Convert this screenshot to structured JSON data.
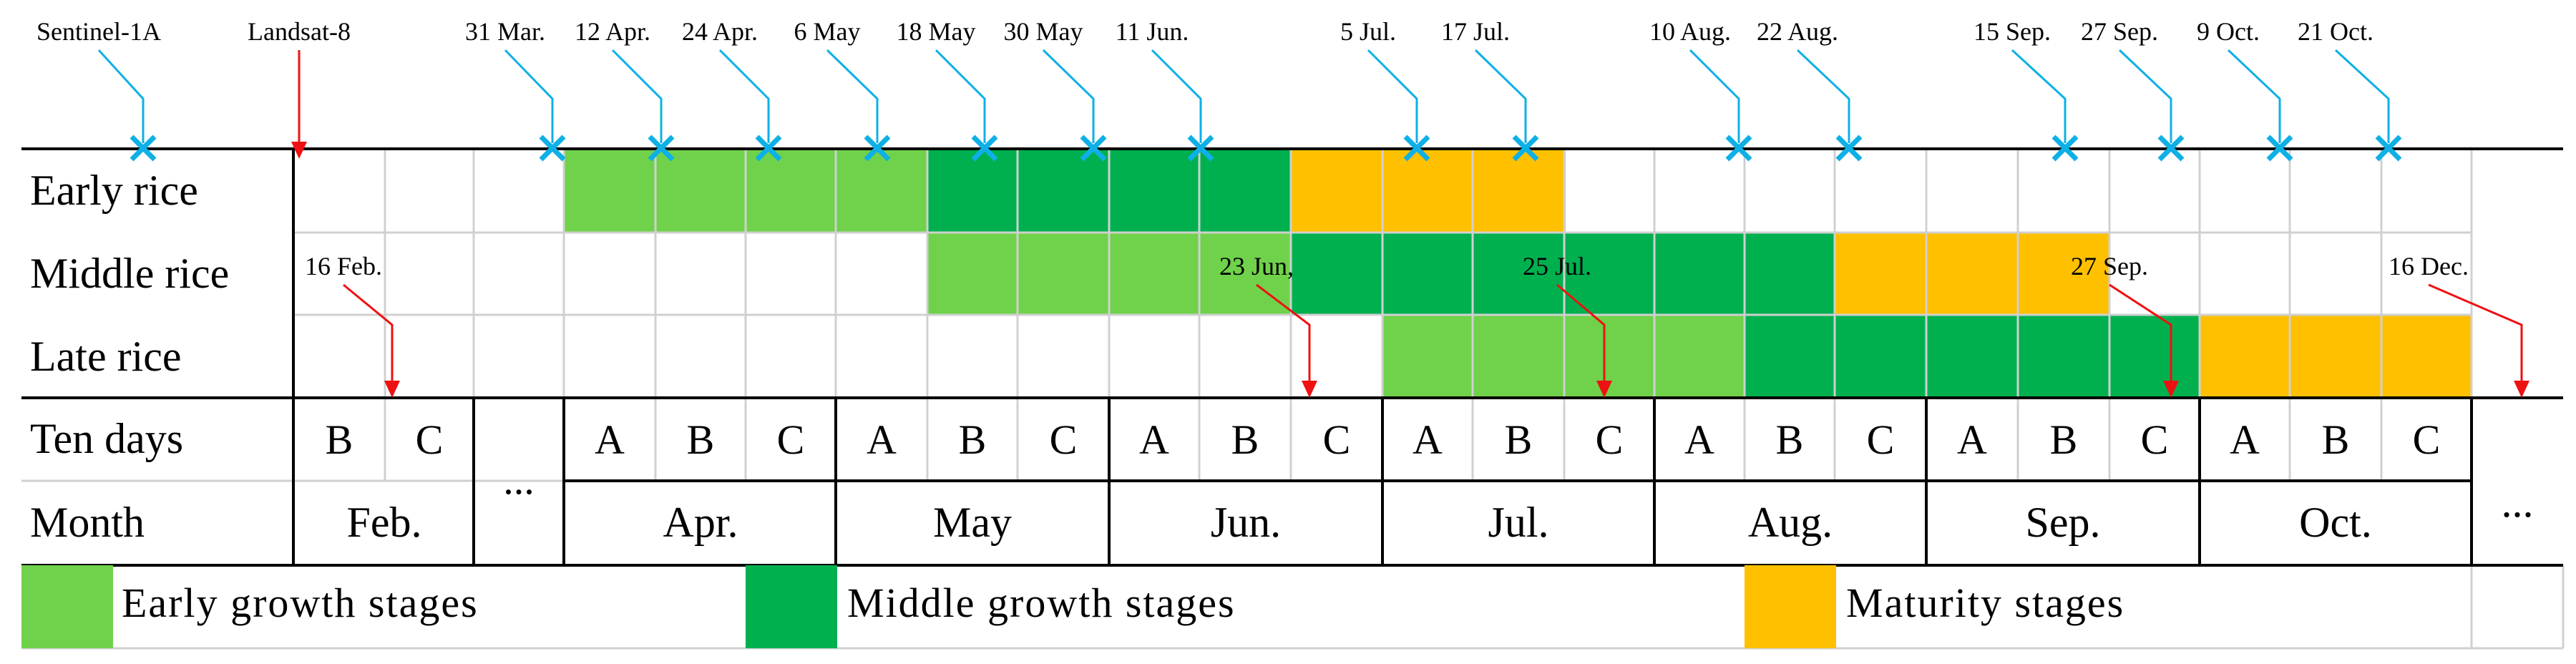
{
  "top_markers": [
    {
      "label": "Sentinel-1A",
      "kind": "sentinel"
    },
    {
      "label": "Landsat-8",
      "kind": "landsat"
    },
    {
      "label": "31 Mar.",
      "kind": "sentinel"
    },
    {
      "label": "12 Apr.",
      "kind": "sentinel"
    },
    {
      "label": "24 Apr.",
      "kind": "sentinel"
    },
    {
      "label": "6 May",
      "kind": "sentinel"
    },
    {
      "label": "18 May",
      "kind": "sentinel"
    },
    {
      "label": "30 May",
      "kind": "sentinel"
    },
    {
      "label": "11 Jun.",
      "kind": "sentinel"
    },
    {
      "label": "5 Jul.",
      "kind": "sentinel"
    },
    {
      "label": "17 Jul.",
      "kind": "sentinel"
    },
    {
      "label": "10 Aug.",
      "kind": "sentinel"
    },
    {
      "label": "22 Aug.",
      "kind": "sentinel"
    },
    {
      "label": "15 Sep.",
      "kind": "sentinel"
    },
    {
      "label": "27 Sep.",
      "kind": "sentinel"
    },
    {
      "label": "9 Oct.",
      "kind": "sentinel"
    },
    {
      "label": "21 Oct.",
      "kind": "sentinel"
    }
  ],
  "inner_markers": [
    {
      "label": "16 Feb.",
      "kind": "landsat"
    },
    {
      "label": "23 Jun,",
      "kind": "landsat"
    },
    {
      "label": "25 Jul.",
      "kind": "landsat"
    },
    {
      "label": "27 Sep.",
      "kind": "landsat"
    },
    {
      "label": "16 Dec.",
      "kind": "landsat"
    }
  ],
  "rows": {
    "early": "Early rice",
    "middle": "Middle rice",
    "late": "Late rice",
    "ten_days": "Ten days",
    "month": "Month"
  },
  "ten_days_cells": [
    "B",
    "C",
    "...",
    "A",
    "B",
    "C",
    "A",
    "B",
    "C",
    "A",
    "B",
    "C",
    "A",
    "B",
    "C",
    "A",
    "B",
    "C",
    "A",
    "B",
    "C",
    "A",
    "B",
    "C"
  ],
  "months": [
    "Feb.",
    "Apr.",
    "May",
    "Jun.",
    "Jul.",
    "Aug.",
    "Sep.",
    "Oct."
  ],
  "trailing_ellipsis": "...",
  "legend": [
    {
      "label": "Early growth stages",
      "color": "#6fd24a"
    },
    {
      "label": "Middle growth stages",
      "color": "#00b04f"
    },
    {
      "label": "Maturity stages",
      "color": "#ffc000"
    }
  ],
  "colors": {
    "early_stage": "#6fd24a",
    "middle_stage": "#00b04f",
    "maturity_stage": "#ffc000",
    "sentinel_marker": "#0eb0e6",
    "landsat_marker": "#ee1111",
    "grid": "#d0d0d0",
    "border": "#000000"
  }
}
